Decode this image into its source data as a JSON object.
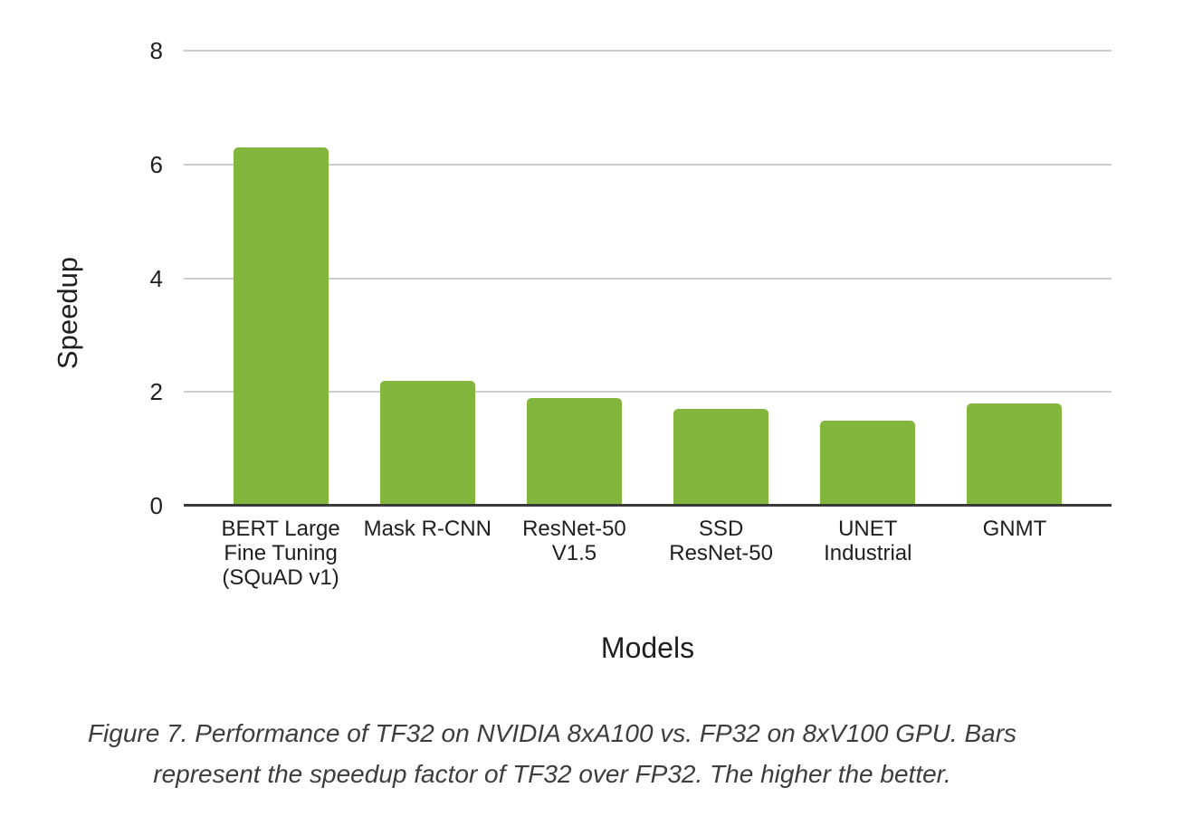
{
  "chart_data": {
    "type": "bar",
    "title": "",
    "categories": [
      "BERT Large\nFine Tuning\n(SQuAD v1)",
      "Mask R-CNN",
      "ResNet-50\nV1.5",
      "SSD\nResNet-50",
      "UNET\nIndustrial",
      "GNMT"
    ],
    "values": [
      6.3,
      2.2,
      1.9,
      1.7,
      1.5,
      1.8
    ],
    "xlabel": "Models",
    "ylabel": "Speedup",
    "ylim": [
      0,
      8
    ],
    "yticks": [
      8,
      6,
      4,
      2,
      0
    ],
    "grid": true,
    "legend": "none"
  },
  "caption": {
    "text": "Figure 7. Performance of TF32 on NVIDIA 8xA100 vs. FP32 on 8xV100 GPU. Bars\nrepresent the speedup factor of TF32 over FP32. The higher the better."
  },
  "colors": {
    "bar": "#83b63c",
    "gridline": "#cccccc",
    "axis": "#3a3a3a",
    "text": "#1f1f1f",
    "caption": "#3d3d3d"
  }
}
